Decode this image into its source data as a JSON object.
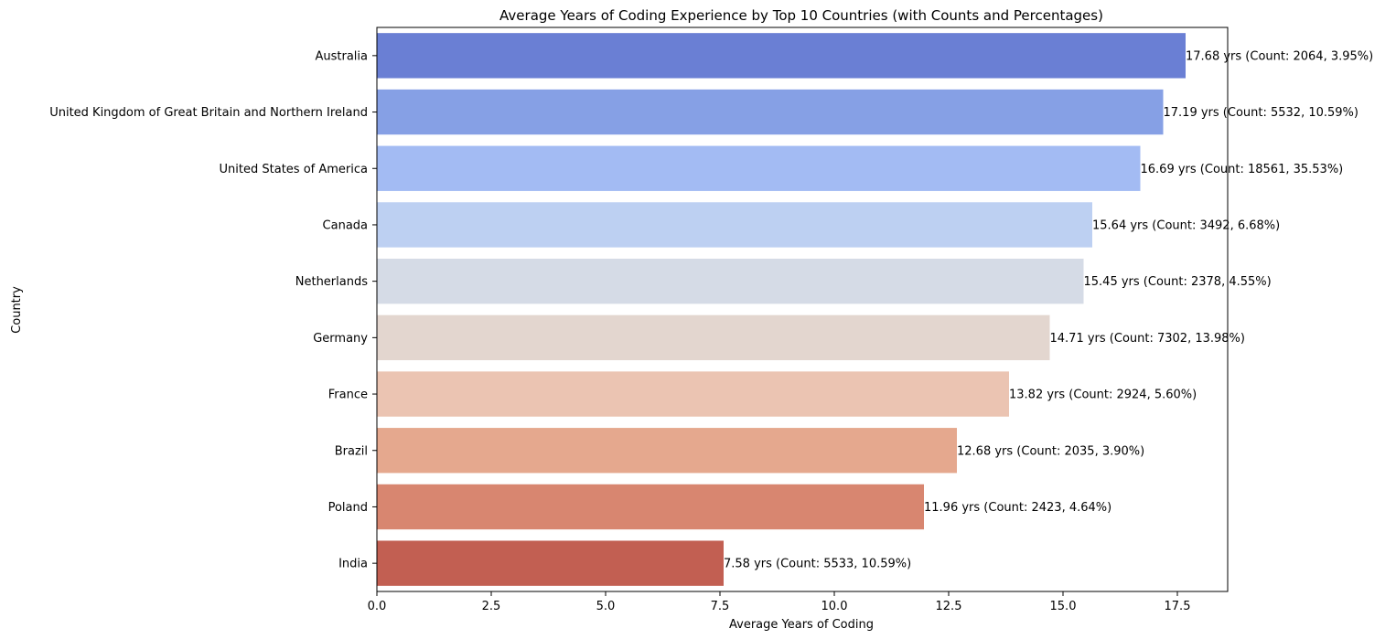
{
  "chart_data": {
    "type": "bar",
    "orientation": "horizontal",
    "title": "Average Years of Coding Experience by Top 10 Countries (with Counts and Percentages)",
    "xlabel": "Average Years of Coding",
    "ylabel": "Country",
    "xlim": [
      0,
      18.6
    ],
    "xticks": [
      0.0,
      2.5,
      5.0,
      7.5,
      10.0,
      12.5,
      15.0,
      17.5
    ],
    "xtick_labels": [
      "0.0",
      "2.5",
      "5.0",
      "7.5",
      "10.0",
      "12.5",
      "15.0",
      "17.5"
    ],
    "grid": false,
    "legend": "none",
    "palette": "coolwarm",
    "categories": [
      "Australia",
      "United Kingdom of Great Britain and Northern Ireland",
      "United States of America",
      "Canada",
      "Netherlands",
      "Germany",
      "France",
      "Brazil",
      "Poland",
      "India"
    ],
    "values": [
      17.68,
      17.19,
      16.69,
      15.64,
      15.45,
      14.71,
      13.82,
      12.68,
      11.96,
      7.58
    ],
    "counts": [
      2064,
      5532,
      18561,
      3492,
      2378,
      7302,
      2924,
      2035,
      2423,
      5533
    ],
    "percentages": [
      3.95,
      10.59,
      35.53,
      6.68,
      4.55,
      13.98,
      5.6,
      3.9,
      4.64,
      10.59
    ],
    "data_labels": [
      "17.68 yrs (Count: 2064, 3.95%)",
      "17.19 yrs (Count: 5532, 10.59%)",
      "16.69 yrs (Count: 18561, 35.53%)",
      "15.64 yrs (Count: 3492, 6.68%)",
      "15.45 yrs (Count: 2378, 4.55%)",
      "14.71 yrs (Count: 7302, 13.98%)",
      "13.82 yrs (Count: 2924, 5.60%)",
      "12.68 yrs (Count: 2035, 3.90%)",
      "11.96 yrs (Count: 2423, 4.64%)",
      "7.58 yrs (Count: 5533, 10.59%)"
    ],
    "colors": [
      "#6a7fd4",
      "#86a0e5",
      "#a3bbf3",
      "#bdd0f2",
      "#d5dbe6",
      "#e3d6cf",
      "#ebc4b2",
      "#e5a88e",
      "#d88670",
      "#c25f52"
    ]
  }
}
